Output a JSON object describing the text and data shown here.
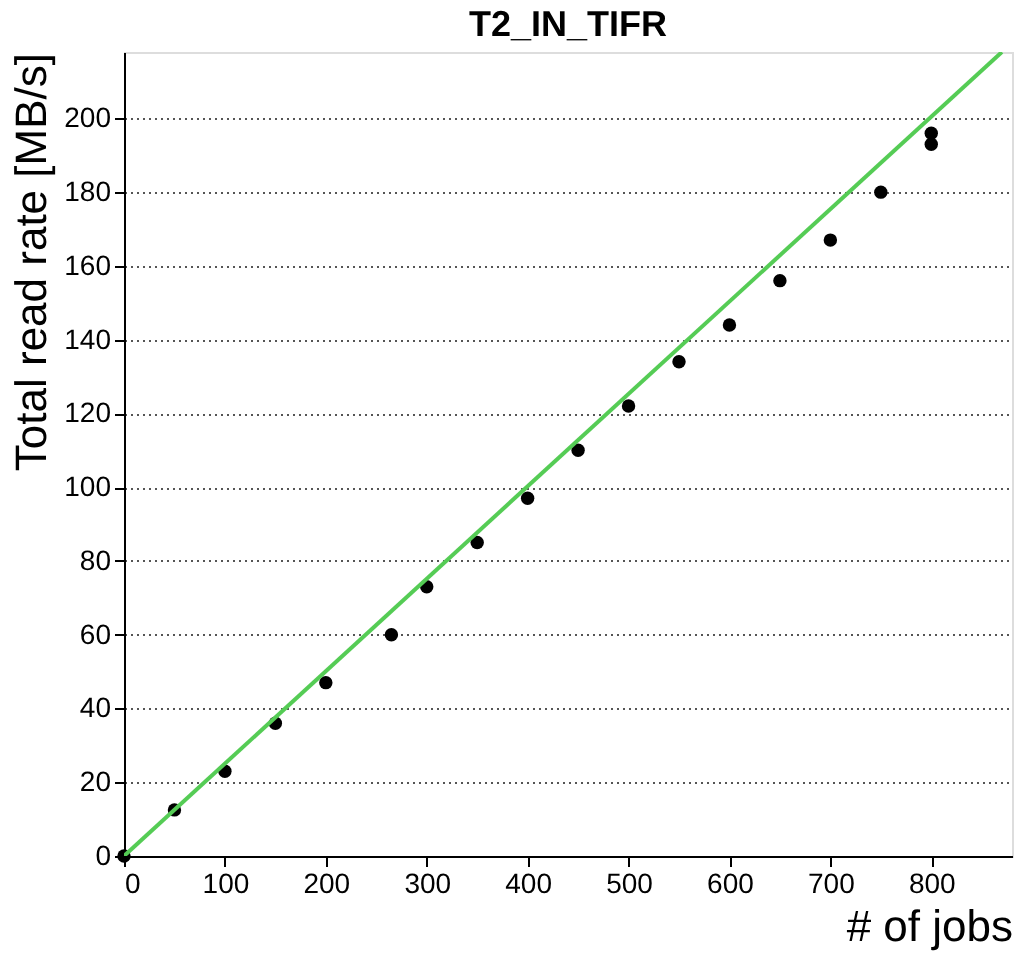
{
  "chart_data": {
    "type": "scatter",
    "title": "T2_IN_TIFR",
    "xlabel": "# of jobs",
    "ylabel": "Total read rate [MB/s]",
    "xlim": [
      0,
      880
    ],
    "ylim": [
      0,
      218
    ],
    "xticks": [
      0,
      100,
      200,
      300,
      400,
      500,
      600,
      700,
      800
    ],
    "yticks": [
      0,
      20,
      40,
      60,
      80,
      100,
      120,
      140,
      160,
      180,
      200
    ],
    "grid": "y",
    "series": [
      {
        "marker": "circle",
        "color": "#000000",
        "x": [
          0,
          50,
          100,
          150,
          200,
          265,
          300,
          350,
          400,
          450,
          500,
          550,
          600,
          650,
          700,
          750,
          800,
          800
        ],
        "values": [
          0,
          12.5,
          23,
          36,
          47,
          60,
          73,
          85,
          97,
          110,
          122,
          134,
          144,
          156,
          167,
          180,
          196,
          193
        ]
      },
      {
        "type": "line",
        "marker": "none",
        "color": "#55cc55",
        "x": [
          0,
          870
        ],
        "values": [
          0,
          218
        ]
      }
    ]
  }
}
